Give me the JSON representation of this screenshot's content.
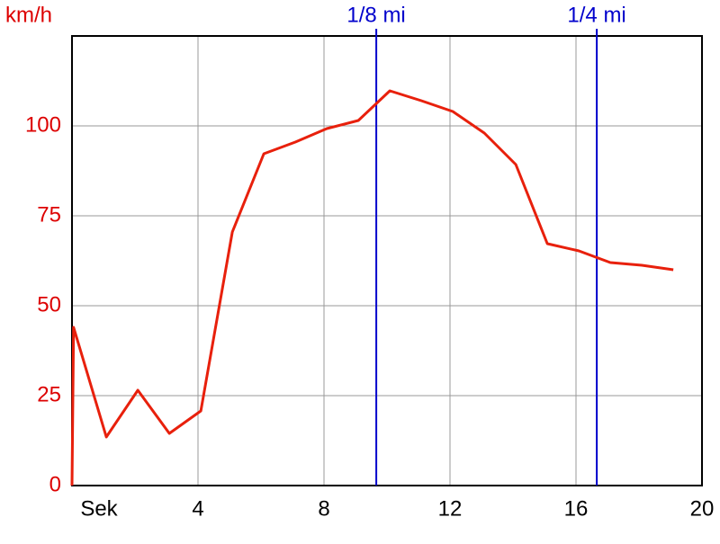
{
  "chart_data": {
    "type": "line",
    "y_label": "km/h",
    "x_label": "Sek",
    "x": [
      0,
      0.05,
      1.09,
      2.09,
      3.09,
      4.09,
      5.09,
      6.09,
      7.09,
      8.09,
      9.09,
      10.09,
      11.09,
      12.09,
      13.09,
      14.09,
      15.09,
      16.09,
      17.09,
      18.09,
      19.09
    ],
    "values": [
      0,
      44,
      13.5,
      26.5,
      14.5,
      20.75,
      70.5,
      92.25,
      95.5,
      99.25,
      101.5,
      109.75,
      107,
      104,
      98,
      89.25,
      67.25,
      65.25,
      62,
      61.25,
      60
    ],
    "color": "#e8200c",
    "xlim": [
      0,
      20
    ],
    "xticks": [
      4,
      8,
      12,
      16,
      20
    ],
    "ylim": [
      0,
      125
    ],
    "yticks": [
      0,
      25,
      50,
      75,
      100
    ],
    "grid": true,
    "markers": [
      {
        "label": "1/8 mi",
        "x": 9.66,
        "color": "#0000cc"
      },
      {
        "label": "1/4 mi",
        "x": 16.66,
        "color": "#0000cc"
      }
    ],
    "y_color": "#dd0000"
  }
}
